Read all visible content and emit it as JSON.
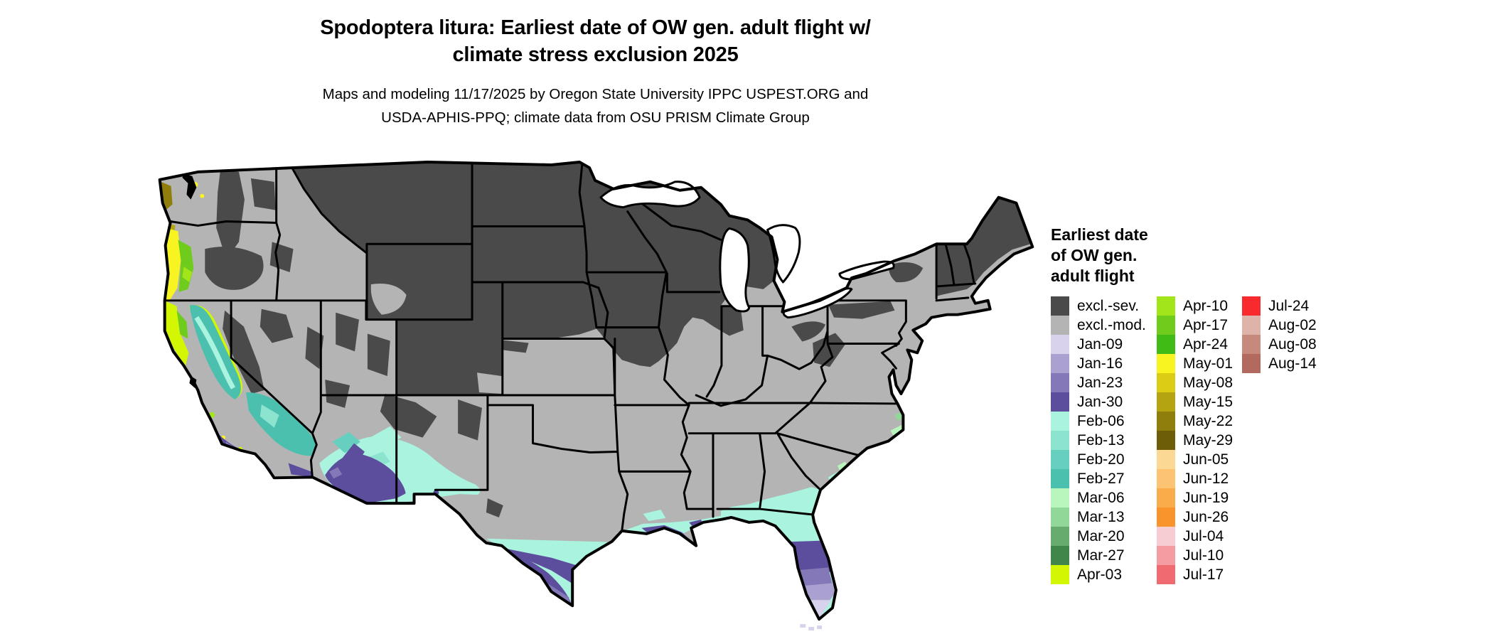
{
  "header": {
    "title_line1": "Spodoptera litura: Earliest date of OW gen. adult flight w/",
    "title_line2": "climate stress exclusion 2025",
    "subtitle_line1": "Maps and modeling 11/17/2025 by Oregon State University IPPC USPEST.ORG and",
    "subtitle_line2": "USDA-APHIS-PPQ; climate data from OSU PRISM Climate Group"
  },
  "legend": {
    "title_line1": "Earliest date",
    "title_line2": "of OW gen.",
    "title_line3": "adult flight",
    "columns": [
      [
        {
          "key": "excl_sev",
          "label": "excl.-sev."
        },
        {
          "key": "excl_mod",
          "label": "excl.-mod."
        },
        {
          "key": "jan09",
          "label": "Jan-09"
        },
        {
          "key": "jan16",
          "label": "Jan-16"
        },
        {
          "key": "jan23",
          "label": "Jan-23"
        },
        {
          "key": "jan30",
          "label": "Jan-30"
        },
        {
          "key": "feb06",
          "label": "Feb-06"
        },
        {
          "key": "feb13",
          "label": "Feb-13"
        },
        {
          "key": "feb20",
          "label": "Feb-20"
        },
        {
          "key": "feb27",
          "label": "Feb-27"
        },
        {
          "key": "mar06",
          "label": "Mar-06"
        },
        {
          "key": "mar13",
          "label": "Mar-13"
        },
        {
          "key": "mar20",
          "label": "Mar-20"
        },
        {
          "key": "mar27",
          "label": "Mar-27"
        },
        {
          "key": "apr03",
          "label": "Apr-03"
        }
      ],
      [
        {
          "key": "apr10",
          "label": "Apr-10"
        },
        {
          "key": "apr17",
          "label": "Apr-17"
        },
        {
          "key": "apr24",
          "label": "Apr-24"
        },
        {
          "key": "may01",
          "label": "May-01"
        },
        {
          "key": "may08",
          "label": "May-08"
        },
        {
          "key": "may15",
          "label": "May-15"
        },
        {
          "key": "may22",
          "label": "May-22"
        },
        {
          "key": "may29",
          "label": "May-29"
        },
        {
          "key": "jun05",
          "label": "Jun-05"
        },
        {
          "key": "jun12",
          "label": "Jun-12"
        },
        {
          "key": "jun19",
          "label": "Jun-19"
        },
        {
          "key": "jun26",
          "label": "Jun-26"
        },
        {
          "key": "jul04",
          "label": "Jul-04"
        },
        {
          "key": "jul10",
          "label": "Jul-10"
        },
        {
          "key": "jul17",
          "label": "Jul-17"
        }
      ],
      [
        {
          "key": "jul24",
          "label": "Jul-24"
        },
        {
          "key": "aug02",
          "label": "Aug-02"
        },
        {
          "key": "aug08",
          "label": "Aug-08"
        },
        {
          "key": "aug14",
          "label": "Aug-14"
        }
      ]
    ]
  },
  "palette": {
    "excl_sev": "#4a4a4a",
    "excl_mod": "#b4b4b4",
    "jan09": "#d8d2ec",
    "jan16": "#aba1d0",
    "jan23": "#8478b8",
    "jan30": "#5c4e9d",
    "feb06": "#aaf3de",
    "feb13": "#8ce4cf",
    "feb20": "#67cfbf",
    "feb27": "#4cc0ae",
    "mar06": "#b9f6be",
    "mar13": "#91d797",
    "mar20": "#68ab6e",
    "mar27": "#40854a",
    "apr03": "#d3f602",
    "apr10": "#a2e51a",
    "apr17": "#6fcc1d",
    "apr24": "#40bb15",
    "may01": "#f8f421",
    "may08": "#dacd14",
    "may15": "#b4a40f",
    "may22": "#907e0c",
    "may29": "#6e5d08",
    "jun05": "#fbd894",
    "jun12": "#fbc372",
    "jun19": "#faac4b",
    "jun26": "#f8942b",
    "jul04": "#f6cdd2",
    "jul10": "#f49ca1",
    "jul17": "#f06b71",
    "jul24": "#f92a2e",
    "aug02": "#deb3a9",
    "aug08": "#c6897c",
    "aug14": "#b16a5d",
    "map_border": "#000000",
    "background": "#ffffff"
  }
}
